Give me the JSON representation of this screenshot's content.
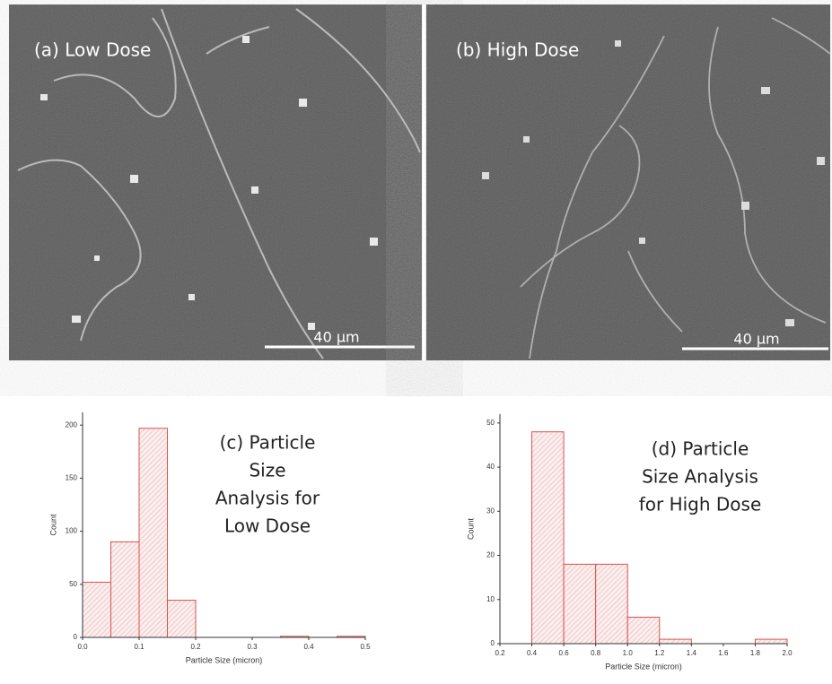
{
  "images": [
    {
      "label": "(a) Low Dose",
      "scale_label": "40 µm"
    },
    {
      "label": "(b) High Dose",
      "scale_label": "40 µm"
    }
  ],
  "chart_data": [
    {
      "type": "histogram",
      "annotation": [
        "(c) Particle",
        "Size",
        "Analysis for",
        "Low Dose"
      ],
      "x_label": "Particle Size (micron)",
      "y_label": "Count",
      "bins": [
        0,
        0.05,
        0.1,
        0.15,
        0.2,
        0.25,
        0.3,
        0.35,
        0.4,
        0.45,
        0.5
      ],
      "values": [
        52,
        90,
        197,
        35,
        0,
        0,
        0,
        1,
        0,
        1
      ],
      "color": "#d9534f",
      "xlim": [
        0,
        0.5
      ],
      "xticks": [
        {
          "value": 0,
          "label": "0.0"
        },
        0.1,
        0.2,
        0.3,
        0.4,
        0.5
      ],
      "ylim": [
        0,
        212
      ],
      "yticks": [
        0,
        50,
        100,
        150,
        200
      ]
    },
    {
      "type": "histogram",
      "annotation": [
        "(d) Particle",
        "Size Analysis",
        "for High Dose"
      ],
      "x_label": "Particle Size (micron)",
      "y_label": "Count",
      "bins": [
        0.4,
        0.6,
        0.8,
        1.0,
        1.2,
        1.4,
        1.6,
        1.8,
        2.0
      ],
      "values": [
        48,
        18,
        18,
        6,
        1,
        0,
        0,
        1
      ],
      "color": "#d9534f",
      "xlim": [
        0.2,
        2.0
      ],
      "xticks": [
        0.2,
        0.4,
        0.6,
        0.8,
        {
          "value": 1,
          "label": "1.0"
        },
        1.2,
        1.4,
        1.6,
        1.8,
        {
          "value": 2,
          "label": "2.0"
        }
      ],
      "ylim": [
        0,
        52
      ],
      "yticks": [
        0,
        10,
        20,
        30,
        40,
        50
      ]
    }
  ]
}
